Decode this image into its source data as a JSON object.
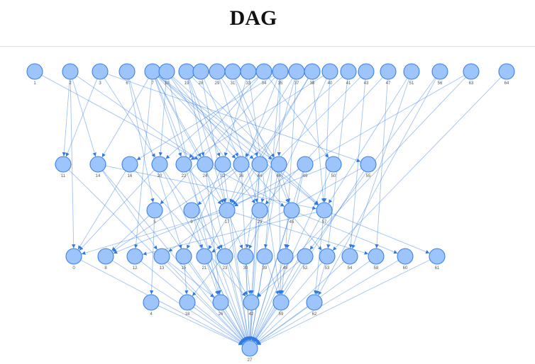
{
  "page": {
    "title": "DAG"
  },
  "graph": {
    "node_color": "#9ec5fb",
    "node_stroke": "#3b82e8",
    "edge_color": "#2f7ae5",
    "layers": [
      [
        "1",
        "2",
        "3",
        "6",
        "7",
        "10",
        "19",
        "28",
        "29",
        "31",
        "33",
        "34",
        "35",
        "37",
        "38",
        "40",
        "41",
        "43",
        "47",
        "51",
        "56",
        "63",
        "64"
      ],
      [
        "11",
        "14",
        "16",
        "20",
        "22",
        "24",
        "32",
        "36",
        "44",
        "46",
        "49",
        "50",
        "55"
      ],
      [
        "5",
        "9",
        "17",
        "25",
        "45",
        "57"
      ],
      [
        "0",
        "8",
        "12",
        "13",
        "15",
        "21",
        "23",
        "30",
        "39",
        "48",
        "52",
        "53",
        "54",
        "58",
        "60",
        "61"
      ],
      [
        "4",
        "18",
        "26",
        "42",
        "59",
        "62"
      ],
      [
        "27"
      ]
    ],
    "edges": [
      [
        "1",
        "45"
      ],
      [
        "2",
        "11"
      ],
      [
        "2",
        "0"
      ],
      [
        "2",
        "14"
      ],
      [
        "2",
        "24"
      ],
      [
        "3",
        "11"
      ],
      [
        "3",
        "20"
      ],
      [
        "3",
        "55"
      ],
      [
        "6",
        "5"
      ],
      [
        "6",
        "15"
      ],
      [
        "7",
        "14"
      ],
      [
        "7",
        "22"
      ],
      [
        "7",
        "24"
      ],
      [
        "7",
        "17"
      ],
      [
        "7",
        "36"
      ],
      [
        "7",
        "44"
      ],
      [
        "7",
        "46"
      ],
      [
        "7",
        "57"
      ],
      [
        "7",
        "12"
      ],
      [
        "7",
        "23"
      ],
      [
        "10",
        "20"
      ],
      [
        "10",
        "25"
      ],
      [
        "10",
        "57"
      ],
      [
        "10",
        "26"
      ],
      [
        "10",
        "53"
      ],
      [
        "19",
        "24"
      ],
      [
        "19",
        "32"
      ],
      [
        "19",
        "17"
      ],
      [
        "19",
        "57"
      ],
      [
        "28",
        "36"
      ],
      [
        "28",
        "17"
      ],
      [
        "29",
        "46"
      ],
      [
        "29",
        "25"
      ],
      [
        "31",
        "44"
      ],
      [
        "31",
        "45"
      ],
      [
        "33",
        "32"
      ],
      [
        "33",
        "59"
      ],
      [
        "34",
        "20"
      ],
      [
        "34",
        "22"
      ],
      [
        "34",
        "50"
      ],
      [
        "35",
        "16"
      ],
      [
        "35",
        "5"
      ],
      [
        "35",
        "17"
      ],
      [
        "35",
        "46"
      ],
      [
        "35",
        "39"
      ],
      [
        "37",
        "36"
      ],
      [
        "37",
        "25"
      ],
      [
        "37",
        "48"
      ],
      [
        "38",
        "17"
      ],
      [
        "38",
        "21"
      ],
      [
        "38",
        "57"
      ],
      [
        "40",
        "22"
      ],
      [
        "40",
        "57"
      ],
      [
        "40",
        "30"
      ],
      [
        "41",
        "9"
      ],
      [
        "41",
        "53"
      ],
      [
        "43",
        "17"
      ],
      [
        "43",
        "54"
      ],
      [
        "47",
        "25"
      ],
      [
        "47",
        "58"
      ],
      [
        "51",
        "57"
      ],
      [
        "51",
        "54"
      ],
      [
        "56",
        "52"
      ],
      [
        "56",
        "62"
      ],
      [
        "63",
        "17"
      ],
      [
        "63",
        "42"
      ],
      [
        "64",
        "53"
      ],
      [
        "11",
        "27"
      ],
      [
        "14",
        "27"
      ],
      [
        "14",
        "57"
      ],
      [
        "14",
        "13"
      ],
      [
        "16",
        "0"
      ],
      [
        "16",
        "42"
      ],
      [
        "20",
        "0"
      ],
      [
        "20",
        "27"
      ],
      [
        "20",
        "23"
      ],
      [
        "22",
        "17"
      ],
      [
        "22",
        "27"
      ],
      [
        "24",
        "26"
      ],
      [
        "24",
        "27"
      ],
      [
        "32",
        "15"
      ],
      [
        "32",
        "27"
      ],
      [
        "36",
        "8"
      ],
      [
        "36",
        "27"
      ],
      [
        "44",
        "42"
      ],
      [
        "44",
        "27"
      ],
      [
        "44",
        "30"
      ],
      [
        "46",
        "45"
      ],
      [
        "46",
        "27"
      ],
      [
        "46",
        "59"
      ],
      [
        "49",
        "27"
      ],
      [
        "49",
        "48"
      ],
      [
        "50",
        "27"
      ],
      [
        "50",
        "8"
      ],
      [
        "55",
        "21"
      ],
      [
        "55",
        "27"
      ],
      [
        "5",
        "8"
      ],
      [
        "5",
        "4"
      ],
      [
        "5",
        "27"
      ],
      [
        "9",
        "27"
      ],
      [
        "9",
        "21"
      ],
      [
        "17",
        "0"
      ],
      [
        "17",
        "13"
      ],
      [
        "17",
        "30"
      ],
      [
        "17",
        "27"
      ],
      [
        "17",
        "58"
      ],
      [
        "25",
        "27"
      ],
      [
        "25",
        "18"
      ],
      [
        "45",
        "27"
      ],
      [
        "45",
        "60"
      ],
      [
        "57",
        "27"
      ],
      [
        "57",
        "12"
      ],
      [
        "57",
        "61"
      ],
      [
        "57",
        "62"
      ],
      [
        "0",
        "27"
      ],
      [
        "8",
        "27"
      ],
      [
        "12",
        "27"
      ],
      [
        "13",
        "26"
      ],
      [
        "13",
        "27"
      ],
      [
        "15",
        "18"
      ],
      [
        "15",
        "27"
      ],
      [
        "21",
        "26"
      ],
      [
        "21",
        "27"
      ],
      [
        "23",
        "42"
      ],
      [
        "23",
        "27"
      ],
      [
        "30",
        "42"
      ],
      [
        "30",
        "27"
      ],
      [
        "39",
        "59"
      ],
      [
        "39",
        "27"
      ],
      [
        "48",
        "59"
      ],
      [
        "48",
        "27"
      ],
      [
        "52",
        "27"
      ],
      [
        "52",
        "42"
      ],
      [
        "53",
        "27"
      ],
      [
        "53",
        "62"
      ],
      [
        "54",
        "27"
      ],
      [
        "58",
        "27"
      ],
      [
        "60",
        "27"
      ],
      [
        "61",
        "27"
      ],
      [
        "4",
        "27"
      ],
      [
        "18",
        "27"
      ],
      [
        "26",
        "27"
      ],
      [
        "42",
        "27"
      ],
      [
        "59",
        "27"
      ],
      [
        "62",
        "27"
      ]
    ]
  }
}
